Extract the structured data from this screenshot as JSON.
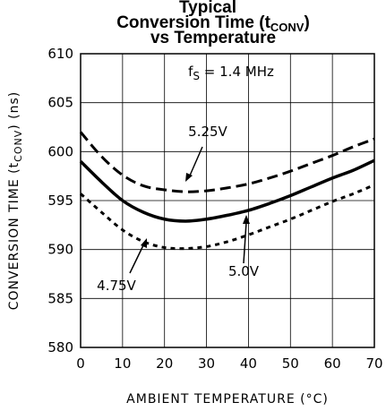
{
  "chart_data": {
    "type": "line",
    "title_line1": "Typical",
    "title_line2_prefix": "Conversion Time (t",
    "title_line2_sub": "CONV",
    "title_line2_suffix": ")",
    "title_line3": "vs Temperature",
    "xlabel": "AMBIENT TEMPERATURE (°C)",
    "ylabel_prefix": "CONVERSION TIME (t",
    "ylabel_sub": "CONV",
    "ylabel_suffix": ") (ns)",
    "xlim": [
      0,
      70
    ],
    "ylim": [
      580,
      610
    ],
    "x_ticks": [
      0,
      10,
      20,
      30,
      40,
      50,
      60,
      70
    ],
    "y_ticks": [
      580,
      585,
      590,
      595,
      600,
      605,
      610
    ],
    "grid": true,
    "condition_label_main": "f",
    "condition_label_sub": "S",
    "condition_label_rest": " = 1.4 MHz",
    "series": [
      {
        "name": "5.25V",
        "style": "long-dash",
        "x": [
          0,
          5,
          10,
          15,
          20,
          25,
          30,
          35,
          40,
          45,
          50,
          55,
          60,
          65,
          70
        ],
        "y": [
          602,
          599.5,
          597.6,
          596.5,
          596.1,
          595.9,
          596.0,
          596.3,
          596.7,
          597.3,
          598.0,
          598.8,
          599.6,
          600.5,
          601.3
        ]
      },
      {
        "name": "5.0V",
        "style": "solid",
        "x": [
          0,
          5,
          10,
          15,
          20,
          25,
          30,
          35,
          40,
          45,
          50,
          55,
          60,
          65,
          70
        ],
        "y": [
          599,
          596.9,
          595.0,
          593.8,
          593.1,
          592.9,
          593.1,
          593.5,
          594.0,
          594.7,
          595.5,
          596.4,
          597.3,
          598.1,
          599.1
        ]
      },
      {
        "name": "4.75V",
        "style": "short-dash",
        "x": [
          0,
          5,
          10,
          15,
          20,
          25,
          30,
          35,
          40,
          45,
          50,
          55,
          60,
          65,
          70
        ],
        "y": [
          595.7,
          593.8,
          592.0,
          590.8,
          590.2,
          590.1,
          590.3,
          590.8,
          591.5,
          592.3,
          593.1,
          594.0,
          594.9,
          595.7,
          596.6
        ]
      }
    ],
    "annotations": [
      {
        "series": "5.25V",
        "label": "5.25V"
      },
      {
        "series": "5.0V",
        "label": "5.0V"
      },
      {
        "series": "4.75V",
        "label": "4.75V"
      }
    ]
  }
}
